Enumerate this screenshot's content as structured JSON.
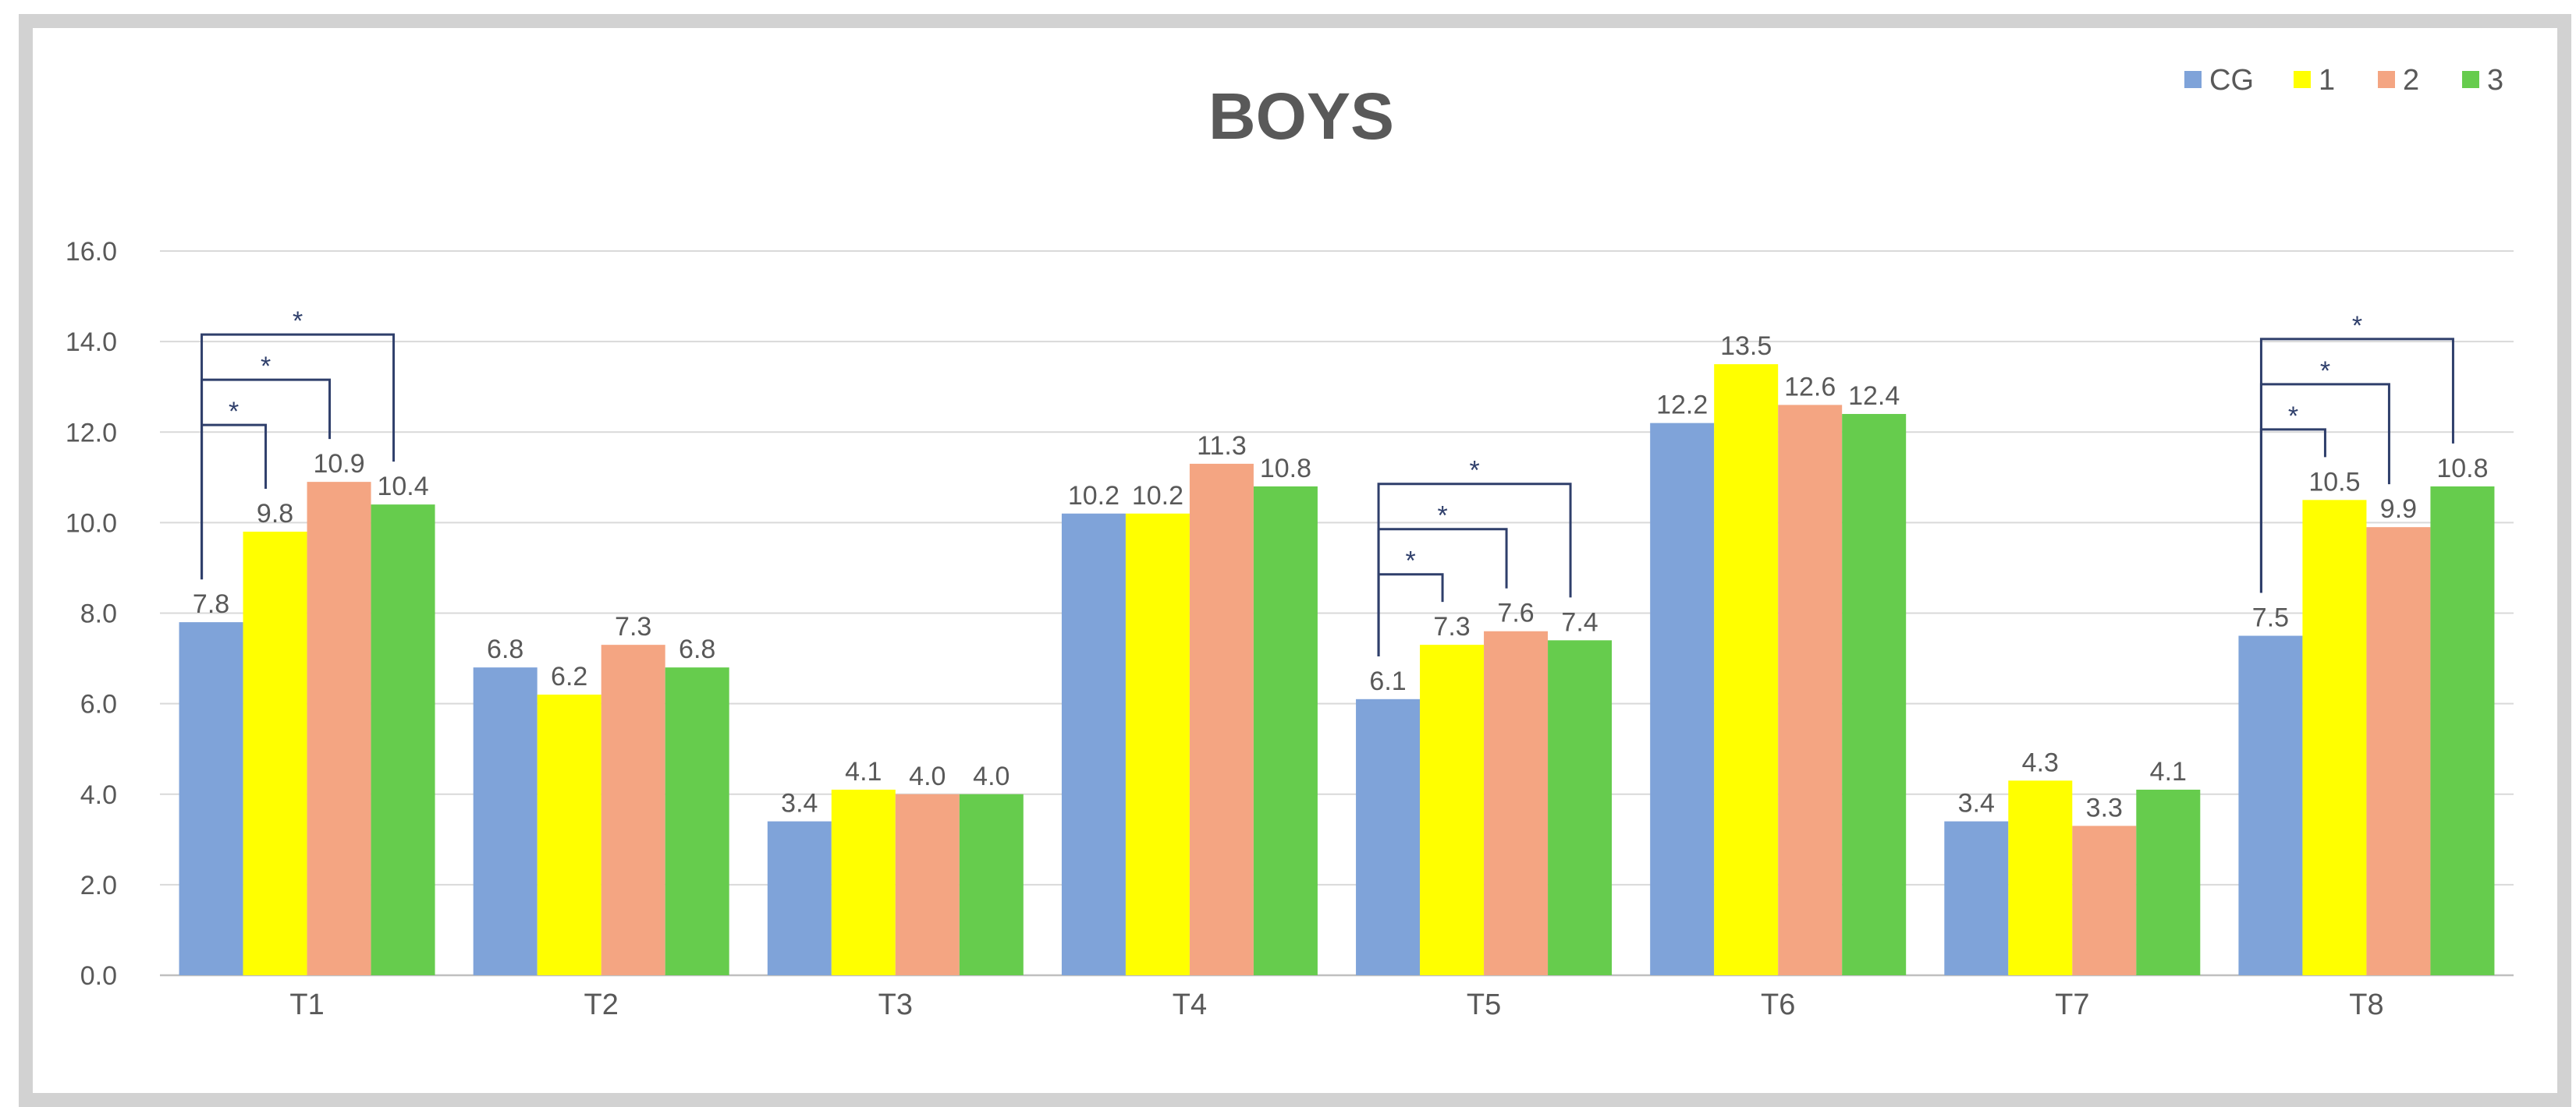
{
  "chart_data": {
    "type": "bar",
    "title": "BOYS",
    "categories": [
      "T1",
      "T2",
      "T3",
      "T4",
      "T5",
      "T6",
      "T7",
      "T8"
    ],
    "series": [
      {
        "name": "CG",
        "color": "#7FA3D9",
        "values": [
          7.8,
          6.8,
          3.4,
          10.2,
          6.1,
          12.2,
          3.4,
          7.5
        ]
      },
      {
        "name": "1",
        "color": "#FFFF00",
        "values": [
          9.8,
          6.2,
          4.1,
          10.2,
          7.3,
          13.5,
          4.3,
          10.5
        ]
      },
      {
        "name": "2",
        "color": "#F4A582",
        "values": [
          10.9,
          7.3,
          4.0,
          11.3,
          7.6,
          12.6,
          3.3,
          9.9
        ]
      },
      {
        "name": "3",
        "color": "#66CC4D",
        "values": [
          10.4,
          6.8,
          4.0,
          10.8,
          7.4,
          12.4,
          4.1,
          10.8
        ]
      }
    ],
    "data_labels": [
      [
        "7.8",
        "6.8",
        "3.4",
        "10.2",
        "6.1",
        "12.2",
        "3.4",
        "7.5"
      ],
      [
        "9.8",
        "6.2",
        "4.1",
        "10.2",
        "7.3",
        "13.5",
        "4.3",
        "10.5"
      ],
      [
        "10.9",
        "7.3",
        "4.0",
        "11.3",
        "7.6",
        "12.6",
        "3.3",
        "9.9"
      ],
      [
        "10.4",
        "6.8",
        "4.0",
        "10.8",
        "7.4",
        "12.4",
        "4.1",
        "10.8"
      ]
    ],
    "ylim": [
      0,
      16
    ],
    "yticks": [
      0,
      2,
      4,
      6,
      8,
      10,
      12,
      14,
      16
    ],
    "ytick_labels": [
      "0.0",
      "2.0",
      "4.0",
      "6.0",
      "8.0",
      "10.0",
      "12.0",
      "14.0",
      "16.0"
    ],
    "grid": true,
    "legend_position": "top-right",
    "significance": [
      {
        "category": "T1",
        "from": "CG",
        "to": "1",
        "label": "*"
      },
      {
        "category": "T1",
        "from": "CG",
        "to": "2",
        "label": "*"
      },
      {
        "category": "T1",
        "from": "CG",
        "to": "3",
        "label": "*"
      },
      {
        "category": "T5",
        "from": "CG",
        "to": "1",
        "label": "*"
      },
      {
        "category": "T5",
        "from": "CG",
        "to": "2",
        "label": "*"
      },
      {
        "category": "T5",
        "from": "CG",
        "to": "3",
        "label": "*"
      },
      {
        "category": "T8",
        "from": "CG",
        "to": "1",
        "label": "*"
      },
      {
        "category": "T8",
        "from": "CG",
        "to": "2",
        "label": "*"
      },
      {
        "category": "T8",
        "from": "CG",
        "to": "3",
        "label": "*"
      }
    ]
  }
}
